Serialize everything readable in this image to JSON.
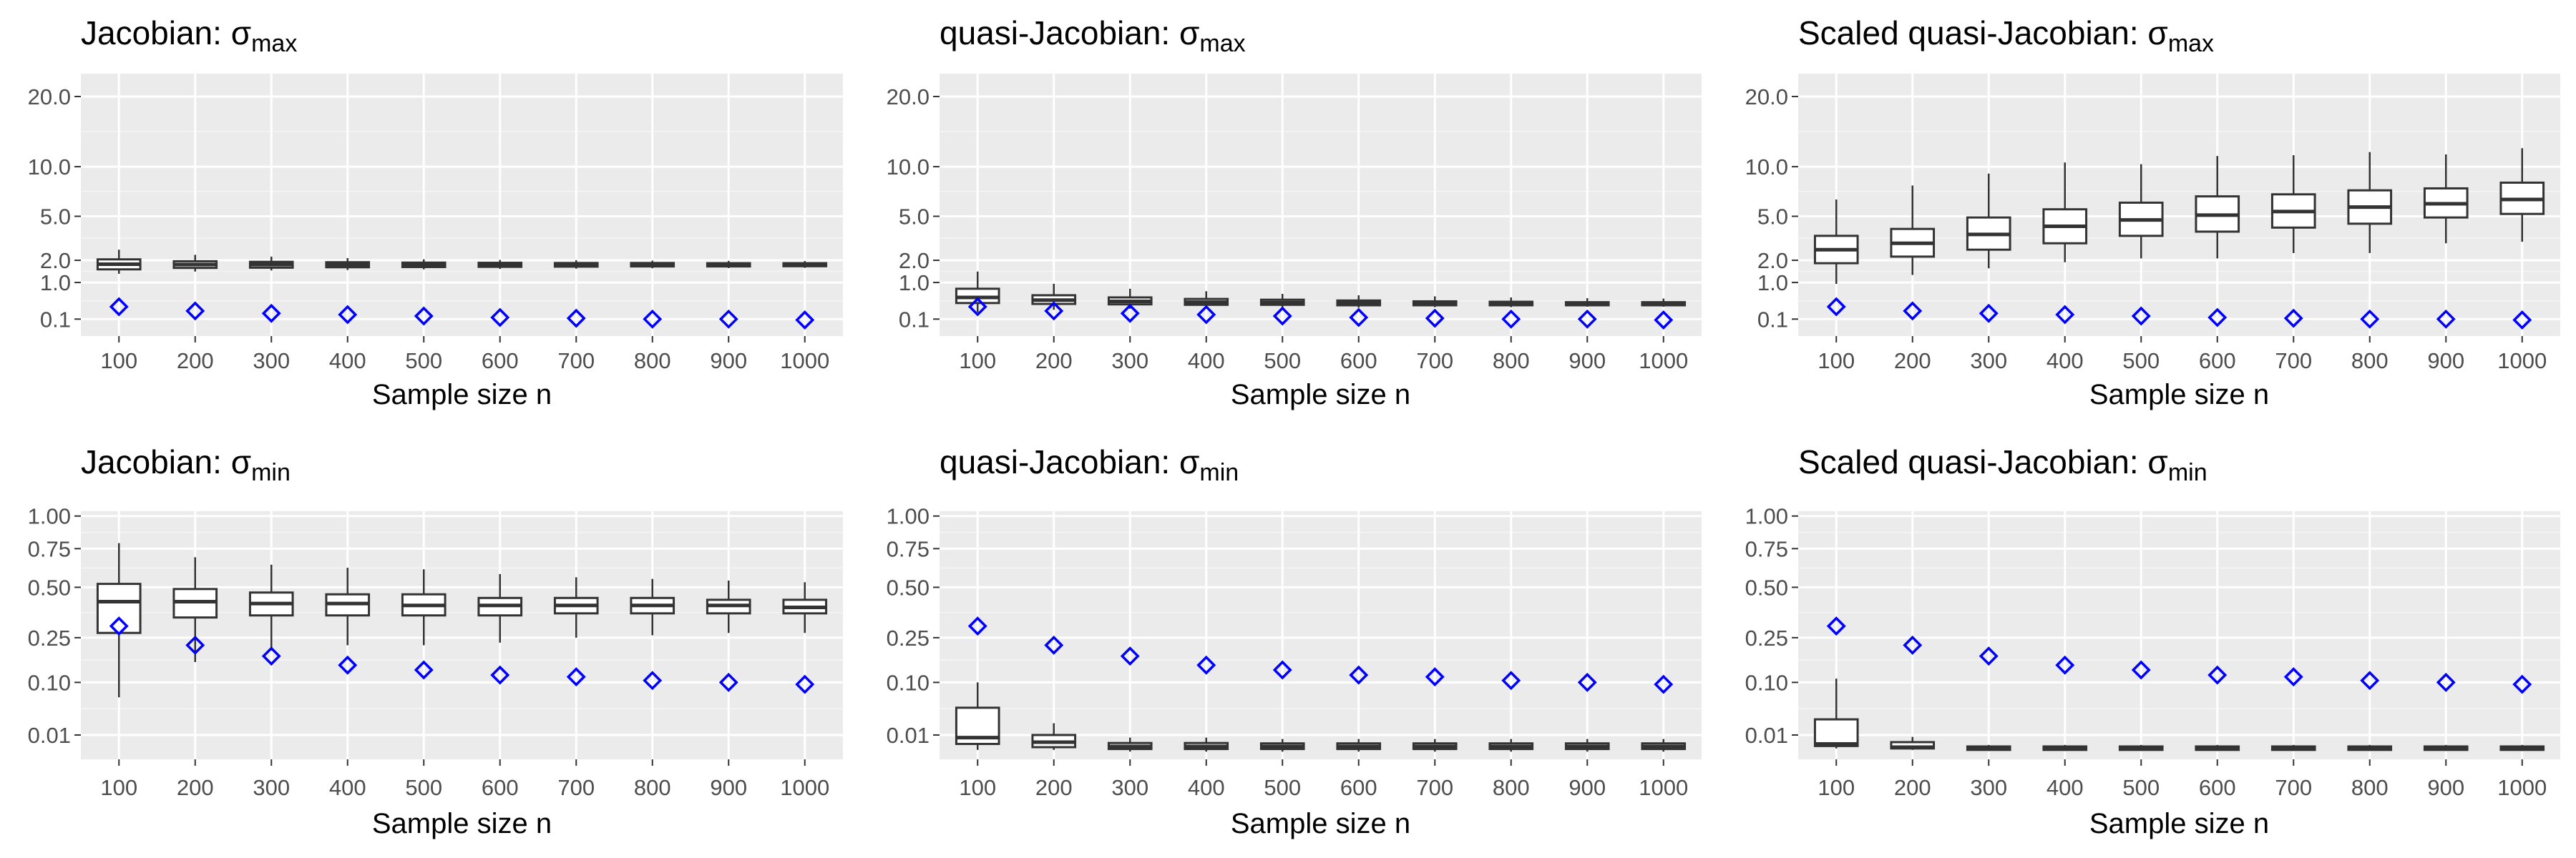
{
  "chart_data": [
    {
      "type": "boxplot",
      "title": {
        "main": "Jacobian: σ",
        "sub": "max"
      },
      "xlabel": "Sample size n",
      "categories": [
        "100",
        "200",
        "300",
        "400",
        "500",
        "600",
        "700",
        "800",
        "900",
        "1000"
      ],
      "yticks": [
        "20.0",
        "10.0",
        "5.0",
        "2.0",
        "1.0",
        "0.1"
      ],
      "ytick_values": [
        20,
        10,
        5,
        2,
        1,
        0.1
      ],
      "y_scale": "sqrt",
      "ylim": [
        0,
        24
      ],
      "boxes": [
        {
          "whisker_low": 1.35,
          "q1": 1.55,
          "median": 1.8,
          "q3": 2.05,
          "whisker_high": 2.6
        },
        {
          "whisker_low": 1.45,
          "q1": 1.62,
          "median": 1.78,
          "q3": 1.95,
          "whisker_high": 2.3
        },
        {
          "whisker_low": 1.5,
          "q1": 1.63,
          "median": 1.78,
          "q3": 1.92,
          "whisker_high": 2.2
        },
        {
          "whisker_low": 1.52,
          "q1": 1.65,
          "median": 1.77,
          "q3": 1.9,
          "whisker_high": 2.12
        },
        {
          "whisker_low": 1.55,
          "q1": 1.66,
          "median": 1.77,
          "q3": 1.88,
          "whisker_high": 2.05
        },
        {
          "whisker_low": 1.57,
          "q1": 1.67,
          "median": 1.77,
          "q3": 1.87,
          "whisker_high": 2.02
        },
        {
          "whisker_low": 1.58,
          "q1": 1.68,
          "median": 1.77,
          "q3": 1.86,
          "whisker_high": 2.0
        },
        {
          "whisker_low": 1.6,
          "q1": 1.69,
          "median": 1.77,
          "q3": 1.86,
          "whisker_high": 1.98
        },
        {
          "whisker_low": 1.61,
          "q1": 1.69,
          "median": 1.77,
          "q3": 1.85,
          "whisker_high": 1.97
        },
        {
          "whisker_low": 1.62,
          "q1": 1.7,
          "median": 1.77,
          "q3": 1.85,
          "whisker_high": 1.96
        }
      ],
      "markers": [
        0.3,
        0.22,
        0.18,
        0.16,
        0.14,
        0.12,
        0.11,
        0.1,
        0.1,
        0.09
      ],
      "marker_color": "#0000ff"
    },
    {
      "type": "boxplot",
      "title": {
        "main": "quasi-Jacobian: σ",
        "sub": "max"
      },
      "xlabel": "Sample size n",
      "categories": [
        "100",
        "200",
        "300",
        "400",
        "500",
        "600",
        "700",
        "800",
        "900",
        "1000"
      ],
      "yticks": [
        "20.0",
        "10.0",
        "5.0",
        "2.0",
        "1.0",
        "0.1"
      ],
      "ytick_values": [
        20,
        10,
        5,
        2,
        1,
        0.1
      ],
      "y_scale": "sqrt",
      "ylim": [
        0,
        24
      ],
      "boxes": [
        {
          "whisker_low": 0.2,
          "q1": 0.38,
          "median": 0.52,
          "q3": 0.78,
          "whisker_high": 1.45
        },
        {
          "whisker_low": 0.24,
          "q1": 0.36,
          "median": 0.45,
          "q3": 0.58,
          "whisker_high": 0.95
        },
        {
          "whisker_low": 0.26,
          "q1": 0.35,
          "median": 0.42,
          "q3": 0.52,
          "whisker_high": 0.78
        },
        {
          "whisker_low": 0.27,
          "q1": 0.34,
          "median": 0.4,
          "q3": 0.48,
          "whisker_high": 0.7
        },
        {
          "whisker_low": 0.28,
          "q1": 0.34,
          "median": 0.39,
          "q3": 0.46,
          "whisker_high": 0.62
        },
        {
          "whisker_low": 0.28,
          "q1": 0.33,
          "median": 0.38,
          "q3": 0.44,
          "whisker_high": 0.58
        },
        {
          "whisker_low": 0.29,
          "q1": 0.33,
          "median": 0.37,
          "q3": 0.42,
          "whisker_high": 0.55
        },
        {
          "whisker_low": 0.29,
          "q1": 0.33,
          "median": 0.36,
          "q3": 0.41,
          "whisker_high": 0.52
        },
        {
          "whisker_low": 0.3,
          "q1": 0.33,
          "median": 0.36,
          "q3": 0.4,
          "whisker_high": 0.5
        },
        {
          "whisker_low": 0.3,
          "q1": 0.33,
          "median": 0.36,
          "q3": 0.4,
          "whisker_high": 0.49
        }
      ],
      "markers": [
        0.3,
        0.22,
        0.18,
        0.16,
        0.14,
        0.12,
        0.11,
        0.1,
        0.1,
        0.09
      ],
      "marker_color": "#0000ff"
    },
    {
      "type": "boxplot",
      "title": {
        "main": "Scaled quasi-Jacobian: σ",
        "sub": "max"
      },
      "xlabel": "Sample size n",
      "categories": [
        "100",
        "200",
        "300",
        "400",
        "500",
        "600",
        "700",
        "800",
        "900",
        "1000"
      ],
      "yticks": [
        "20.0",
        "10.0",
        "5.0",
        "2.0",
        "1.0",
        "0.1"
      ],
      "ytick_values": [
        20,
        10,
        5,
        2,
        1,
        0.1
      ],
      "y_scale": "sqrt",
      "ylim": [
        0,
        24
      ],
      "boxes": [
        {
          "whisker_low": 0.95,
          "q1": 1.85,
          "median": 2.6,
          "q3": 3.5,
          "whisker_high": 6.5
        },
        {
          "whisker_low": 1.3,
          "q1": 2.2,
          "median": 3.0,
          "q3": 4.0,
          "whisker_high": 7.9
        },
        {
          "whisker_low": 1.6,
          "q1": 2.6,
          "median": 3.6,
          "q3": 4.9,
          "whisker_high": 9.2
        },
        {
          "whisker_low": 1.9,
          "q1": 3.0,
          "median": 4.2,
          "q3": 5.6,
          "whisker_high": 10.5
        },
        {
          "whisker_low": 2.1,
          "q1": 3.5,
          "median": 4.7,
          "q3": 6.2,
          "whisker_high": 10.3
        },
        {
          "whisker_low": 2.1,
          "q1": 3.8,
          "median": 5.1,
          "q3": 6.8,
          "whisker_high": 11.3
        },
        {
          "whisker_low": 2.4,
          "q1": 4.1,
          "median": 5.4,
          "q3": 7.0,
          "whisker_high": 11.4
        },
        {
          "whisker_low": 2.4,
          "q1": 4.4,
          "median": 5.8,
          "q3": 7.4,
          "whisker_high": 11.8
        },
        {
          "whisker_low": 3.0,
          "q1": 4.9,
          "median": 6.1,
          "q3": 7.6,
          "whisker_high": 11.5
        },
        {
          "whisker_low": 3.1,
          "q1": 5.2,
          "median": 6.5,
          "q3": 8.2,
          "whisker_high": 12.3
        }
      ],
      "markers": [
        0.3,
        0.22,
        0.18,
        0.16,
        0.14,
        0.12,
        0.11,
        0.1,
        0.1,
        0.09
      ],
      "marker_color": "#0000ff"
    },
    {
      "type": "boxplot",
      "title": {
        "main": "Jacobian: σ",
        "sub": "min"
      },
      "xlabel": "Sample size n",
      "categories": [
        "100",
        "200",
        "300",
        "400",
        "500",
        "600",
        "700",
        "800",
        "900",
        "1000"
      ],
      "yticks": [
        "1.00",
        "0.75",
        "0.50",
        "0.25",
        "0.10",
        "0.01"
      ],
      "ytick_values": [
        1,
        0.75,
        0.5,
        0.25,
        0.1,
        0.01
      ],
      "y_scale": "sqrt",
      "ylim": [
        0,
        1.04
      ],
      "boxes": [
        {
          "whisker_low": 0.065,
          "q1": 0.27,
          "median": 0.42,
          "q3": 0.52,
          "whisker_high": 0.79
        },
        {
          "whisker_low": 0.16,
          "q1": 0.34,
          "median": 0.42,
          "q3": 0.49,
          "whisker_high": 0.69
        },
        {
          "whisker_low": 0.2,
          "q1": 0.35,
          "median": 0.41,
          "q3": 0.47,
          "whisker_high": 0.64
        },
        {
          "whisker_low": 0.22,
          "q1": 0.35,
          "median": 0.41,
          "q3": 0.46,
          "whisker_high": 0.62
        },
        {
          "whisker_low": 0.22,
          "q1": 0.35,
          "median": 0.4,
          "q3": 0.46,
          "whisker_high": 0.61
        },
        {
          "whisker_low": 0.23,
          "q1": 0.35,
          "median": 0.4,
          "q3": 0.44,
          "whisker_high": 0.58
        },
        {
          "whisker_low": 0.25,
          "q1": 0.36,
          "median": 0.4,
          "q3": 0.44,
          "whisker_high": 0.56
        },
        {
          "whisker_low": 0.26,
          "q1": 0.36,
          "median": 0.4,
          "q3": 0.44,
          "whisker_high": 0.55
        },
        {
          "whisker_low": 0.27,
          "q1": 0.36,
          "median": 0.4,
          "q3": 0.43,
          "whisker_high": 0.54
        },
        {
          "whisker_low": 0.27,
          "q1": 0.36,
          "median": 0.39,
          "q3": 0.43,
          "whisker_high": 0.53
        }
      ],
      "markers": [
        0.3,
        0.22,
        0.18,
        0.15,
        0.135,
        0.12,
        0.115,
        0.105,
        0.1,
        0.095
      ],
      "marker_color": "#0000ff"
    },
    {
      "type": "boxplot",
      "title": {
        "main": "quasi-Jacobian: σ",
        "sub": "min"
      },
      "xlabel": "Sample size n",
      "categories": [
        "100",
        "200",
        "300",
        "400",
        "500",
        "600",
        "700",
        "800",
        "900",
        "1000"
      ],
      "yticks": [
        "1.00",
        "0.75",
        "0.50",
        "0.25",
        "0.10",
        "0.01"
      ],
      "ytick_values": [
        1,
        0.75,
        0.5,
        0.25,
        0.1,
        0.01
      ],
      "y_scale": "sqrt",
      "ylim": [
        0,
        1.04
      ],
      "boxes": [
        {
          "whisker_low": 0.0015,
          "q1": 0.004,
          "median": 0.008,
          "q3": 0.045,
          "whisker_high": 0.1
        },
        {
          "whisker_low": 0.0015,
          "q1": 0.0025,
          "median": 0.005,
          "q3": 0.01,
          "whisker_high": 0.022
        },
        {
          "whisker_low": 0.001,
          "q1": 0.0018,
          "median": 0.0028,
          "q3": 0.0045,
          "whisker_high": 0.008
        },
        {
          "whisker_low": 0.001,
          "q1": 0.0018,
          "median": 0.0028,
          "q3": 0.0045,
          "whisker_high": 0.008
        },
        {
          "whisker_low": 0.001,
          "q1": 0.0018,
          "median": 0.0028,
          "q3": 0.0043,
          "whisker_high": 0.007
        },
        {
          "whisker_low": 0.001,
          "q1": 0.0018,
          "median": 0.0028,
          "q3": 0.0043,
          "whisker_high": 0.007
        },
        {
          "whisker_low": 0.001,
          "q1": 0.0018,
          "median": 0.0028,
          "q3": 0.0043,
          "whisker_high": 0.007
        },
        {
          "whisker_low": 0.001,
          "q1": 0.0018,
          "median": 0.0028,
          "q3": 0.0043,
          "whisker_high": 0.007
        },
        {
          "whisker_low": 0.001,
          "q1": 0.0018,
          "median": 0.0028,
          "q3": 0.0043,
          "whisker_high": 0.007
        },
        {
          "whisker_low": 0.001,
          "q1": 0.0018,
          "median": 0.0028,
          "q3": 0.0043,
          "whisker_high": 0.007
        }
      ],
      "markers": [
        0.3,
        0.22,
        0.18,
        0.15,
        0.135,
        0.12,
        0.115,
        0.105,
        0.1,
        0.095
      ],
      "marker_color": "#0000ff"
    },
    {
      "type": "boxplot",
      "title": {
        "main": "Scaled quasi-Jacobian: σ",
        "sub": "min"
      },
      "xlabel": "Sample size n",
      "categories": [
        "100",
        "200",
        "300",
        "400",
        "500",
        "600",
        "700",
        "800",
        "900",
        "1000"
      ],
      "yticks": [
        "1.00",
        "0.75",
        "0.50",
        "0.25",
        "0.10",
        "0.01"
      ],
      "ytick_values": [
        1,
        0.75,
        0.5,
        0.25,
        0.1,
        0.01
      ],
      "y_scale": "sqrt",
      "ylim": [
        0,
        1.04
      ],
      "boxes": [
        {
          "whisker_low": 0.002,
          "q1": 0.003,
          "median": 0.004,
          "q3": 0.027,
          "whisker_high": 0.11
        },
        {
          "whisker_low": 0.0015,
          "q1": 0.002,
          "median": 0.0025,
          "q3": 0.005,
          "whisker_high": 0.0085
        },
        {
          "whisker_low": 0.0012,
          "q1": 0.0015,
          "median": 0.002,
          "q3": 0.0028,
          "whisker_high": 0.0035
        },
        {
          "whisker_low": 0.0012,
          "q1": 0.0015,
          "median": 0.002,
          "q3": 0.0028,
          "whisker_high": 0.0035
        },
        {
          "whisker_low": 0.0012,
          "q1": 0.0015,
          "median": 0.002,
          "q3": 0.0028,
          "whisker_high": 0.0035
        },
        {
          "whisker_low": 0.0012,
          "q1": 0.0015,
          "median": 0.002,
          "q3": 0.0028,
          "whisker_high": 0.0035
        },
        {
          "whisker_low": 0.0012,
          "q1": 0.0015,
          "median": 0.002,
          "q3": 0.0028,
          "whisker_high": 0.0035
        },
        {
          "whisker_low": 0.0012,
          "q1": 0.0015,
          "median": 0.002,
          "q3": 0.0028,
          "whisker_high": 0.0035
        },
        {
          "whisker_low": 0.0012,
          "q1": 0.0015,
          "median": 0.002,
          "q3": 0.0028,
          "whisker_high": 0.0035
        },
        {
          "whisker_low": 0.0012,
          "q1": 0.0015,
          "median": 0.002,
          "q3": 0.0028,
          "whisker_high": 0.0035
        }
      ],
      "markers": [
        0.3,
        0.22,
        0.18,
        0.15,
        0.135,
        0.12,
        0.115,
        0.105,
        0.1,
        0.095
      ],
      "marker_color": "#0000ff"
    }
  ]
}
